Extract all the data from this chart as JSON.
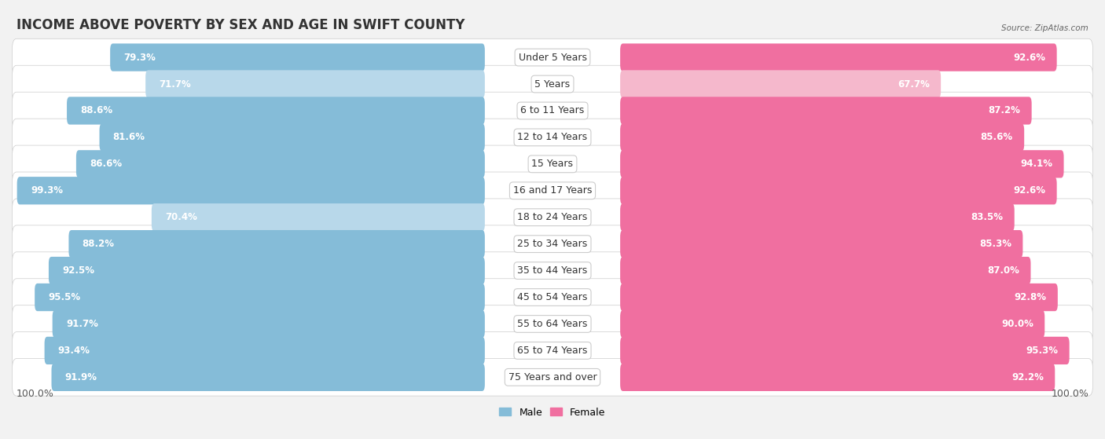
{
  "title": "INCOME ABOVE POVERTY BY SEX AND AGE IN SWIFT COUNTY",
  "source": "Source: ZipAtlas.com",
  "categories": [
    "Under 5 Years",
    "5 Years",
    "6 to 11 Years",
    "12 to 14 Years",
    "15 Years",
    "16 and 17 Years",
    "18 to 24 Years",
    "25 to 34 Years",
    "35 to 44 Years",
    "45 to 54 Years",
    "55 to 64 Years",
    "65 to 74 Years",
    "75 Years and over"
  ],
  "male_values": [
    79.3,
    71.7,
    88.6,
    81.6,
    86.6,
    99.3,
    70.4,
    88.2,
    92.5,
    95.5,
    91.7,
    93.4,
    91.9
  ],
  "female_values": [
    92.6,
    67.7,
    87.2,
    85.6,
    94.1,
    92.6,
    83.5,
    85.3,
    87.0,
    92.8,
    90.0,
    95.3,
    92.2
  ],
  "male_color": "#85bcd8",
  "male_color_light": "#b8d8ea",
  "female_color": "#f06fa0",
  "female_color_light": "#f5b8cc",
  "background_color": "#f2f2f2",
  "bar_bg_color": "#ffffff",
  "max_value": 100.0,
  "left_label": "100.0%",
  "right_label": "100.0%",
  "title_fontsize": 12,
  "label_fontsize": 9,
  "value_fontsize": 8.5
}
